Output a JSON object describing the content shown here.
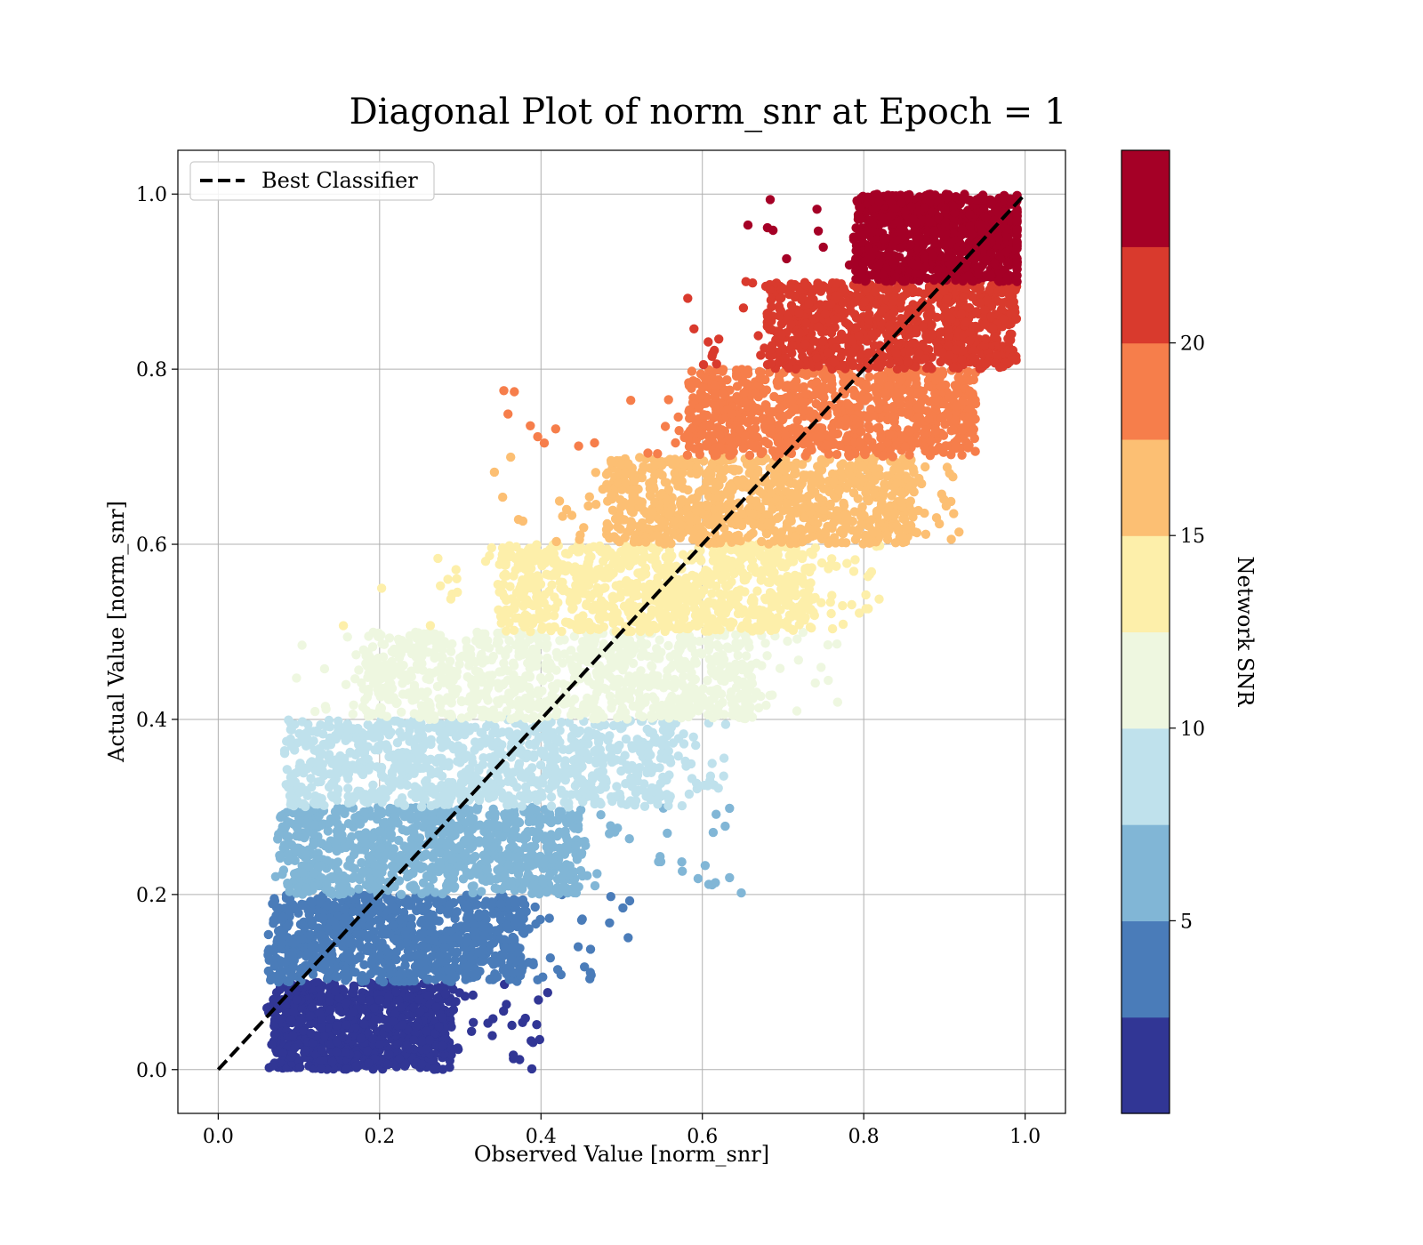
{
  "chart_data": {
    "type": "scatter",
    "title": "Diagonal Plot of norm_snr at Epoch = 1",
    "xlabel": "Observed Value [norm_snr]",
    "ylabel": "Actual Value [norm_snr]",
    "xlim": [
      -0.05,
      1.05
    ],
    "ylim": [
      -0.05,
      1.05
    ],
    "x_ticks": [
      0.0,
      0.2,
      0.4,
      0.6,
      0.8,
      1.0
    ],
    "y_ticks": [
      0.0,
      0.2,
      0.4,
      0.6,
      0.8,
      1.0
    ],
    "x_tick_labels": [
      "0.0",
      "0.2",
      "0.4",
      "0.6",
      "0.8",
      "1.0"
    ],
    "y_tick_labels": [
      "0.0",
      "0.2",
      "0.4",
      "0.6",
      "0.8",
      "1.0"
    ],
    "grid": true,
    "legend": {
      "placement": "top-left",
      "entries": [
        {
          "label": "Best Classifier",
          "style": "dashed-black-line"
        }
      ]
    },
    "reference_line": {
      "label": "Best Classifier",
      "x": [
        0.0,
        1.0
      ],
      "y": [
        0.0,
        1.0
      ],
      "color": "#000000",
      "style": "dashed"
    },
    "colorbar": {
      "label": "Network SNR",
      "range": [
        0,
        25
      ],
      "ticks": [
        5,
        10,
        15,
        20
      ],
      "tick_labels": [
        "5",
        "10",
        "15",
        "20"
      ],
      "colors": [
        "#313695",
        "#4575b4",
        "#74add1",
        "#abd9e9",
        "#e0f3f8",
        "#ffffbf",
        "#fee090",
        "#fdae61",
        "#f46d43",
        "#a50026"
      ],
      "displayed_colors": [
        "#313695",
        "#4a7cb9",
        "#81b6d6",
        "#bfe1ec",
        "#eef7e0",
        "#fdefaa",
        "#fcbf73",
        "#f67e4b",
        "#d93a2d",
        "#a50026"
      ]
    },
    "series": [
      {
        "snr_band": [
          0.0,
          2.5
        ],
        "color": "#313695",
        "y_range": [
          0.0,
          0.1
        ],
        "x_core": [
          0.07,
          0.29
        ],
        "x_spread": [
          0.06,
          0.42
        ]
      },
      {
        "snr_band": [
          2.5,
          5.0
        ],
        "color": "#4a7cb9",
        "y_range": [
          0.1,
          0.2
        ],
        "x_core": [
          0.07,
          0.38
        ],
        "x_spread": [
          0.06,
          0.51
        ]
      },
      {
        "snr_band": [
          5.0,
          7.5
        ],
        "color": "#81b6d6",
        "y_range": [
          0.2,
          0.3
        ],
        "x_core": [
          0.08,
          0.45
        ],
        "x_spread": [
          0.07,
          0.65
        ]
      },
      {
        "snr_band": [
          7.5,
          10.0
        ],
        "color": "#bfe1ec",
        "y_range": [
          0.3,
          0.4
        ],
        "x_core": [
          0.09,
          0.56
        ],
        "x_spread": [
          0.08,
          0.64
        ]
      },
      {
        "snr_band": [
          10.0,
          12.5
        ],
        "color": "#eef7e0",
        "y_range": [
          0.4,
          0.5
        ],
        "x_core": [
          0.18,
          0.66
        ],
        "x_spread": [
          0.08,
          0.77
        ]
      },
      {
        "snr_band": [
          12.5,
          15.0
        ],
        "color": "#fdefaa",
        "y_range": [
          0.5,
          0.6
        ],
        "x_core": [
          0.35,
          0.74
        ],
        "x_spread": [
          0.11,
          0.82
        ]
      },
      {
        "snr_band": [
          15.0,
          17.5
        ],
        "color": "#fcbf73",
        "y_range": [
          0.6,
          0.7
        ],
        "x_core": [
          0.48,
          0.86
        ],
        "x_spread": [
          0.33,
          0.92
        ]
      },
      {
        "snr_band": [
          17.5,
          20.0
        ],
        "color": "#f67e4b",
        "y_range": [
          0.7,
          0.8
        ],
        "x_core": [
          0.58,
          0.93
        ],
        "x_spread": [
          0.35,
          0.94
        ]
      },
      {
        "snr_band": [
          20.0,
          22.5
        ],
        "color": "#d93a2d",
        "y_range": [
          0.8,
          0.9
        ],
        "x_core": [
          0.68,
          0.98
        ],
        "x_spread": [
          0.58,
          0.99
        ]
      },
      {
        "snr_band": [
          22.5,
          25.0
        ],
        "color": "#a50026",
        "y_range": [
          0.9,
          1.0
        ],
        "x_core": [
          0.79,
          0.99
        ],
        "x_spread": [
          0.64,
          0.99
        ]
      }
    ]
  }
}
